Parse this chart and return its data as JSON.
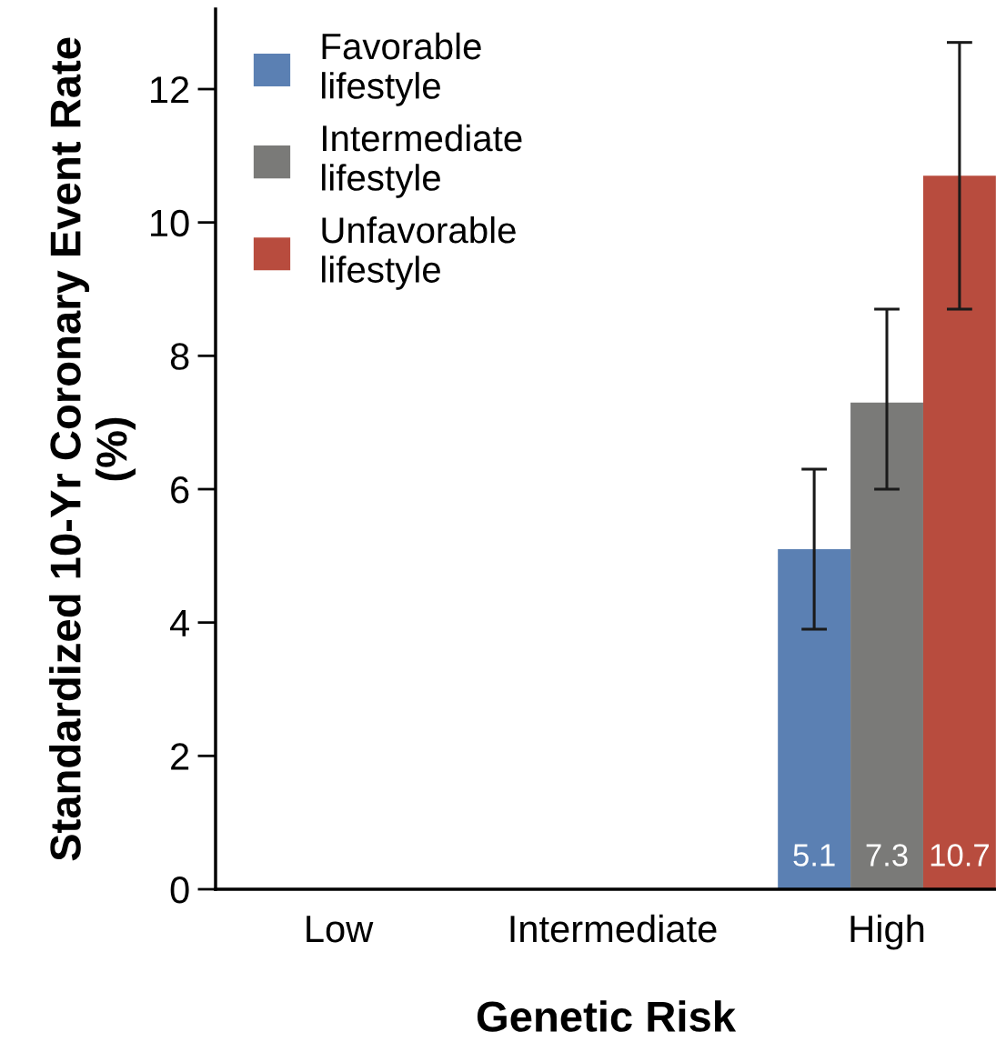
{
  "chart_data": {
    "type": "bar",
    "xlabel": "Genetic Risk",
    "ylabel": "Standardized 10-Yr Coronary Event Rate (%)",
    "categories": [
      "Low",
      "Intermediate",
      "High"
    ],
    "series": [
      {
        "name": "Favorable lifestyle",
        "color": "#5b80b3",
        "values": [
          null,
          null,
          5.1
        ],
        "errors": [
          null,
          null,
          [
            3.9,
            6.3
          ]
        ]
      },
      {
        "name": "Intermediate lifestyle",
        "color": "#7a7a78",
        "values": [
          null,
          null,
          7.3
        ],
        "errors": [
          null,
          null,
          [
            6.0,
            8.7
          ]
        ]
      },
      {
        "name": "Unfavorable lifestyle",
        "color": "#b84c3e",
        "values": [
          null,
          null,
          10.7
        ],
        "errors": [
          null,
          null,
          [
            8.7,
            12.7
          ]
        ]
      }
    ],
    "ylim": [
      0,
      13.2
    ],
    "yticks": [
      0,
      2,
      4,
      6,
      8,
      10,
      12
    ],
    "grid": false,
    "legend": "top left",
    "data_labels": true
  }
}
